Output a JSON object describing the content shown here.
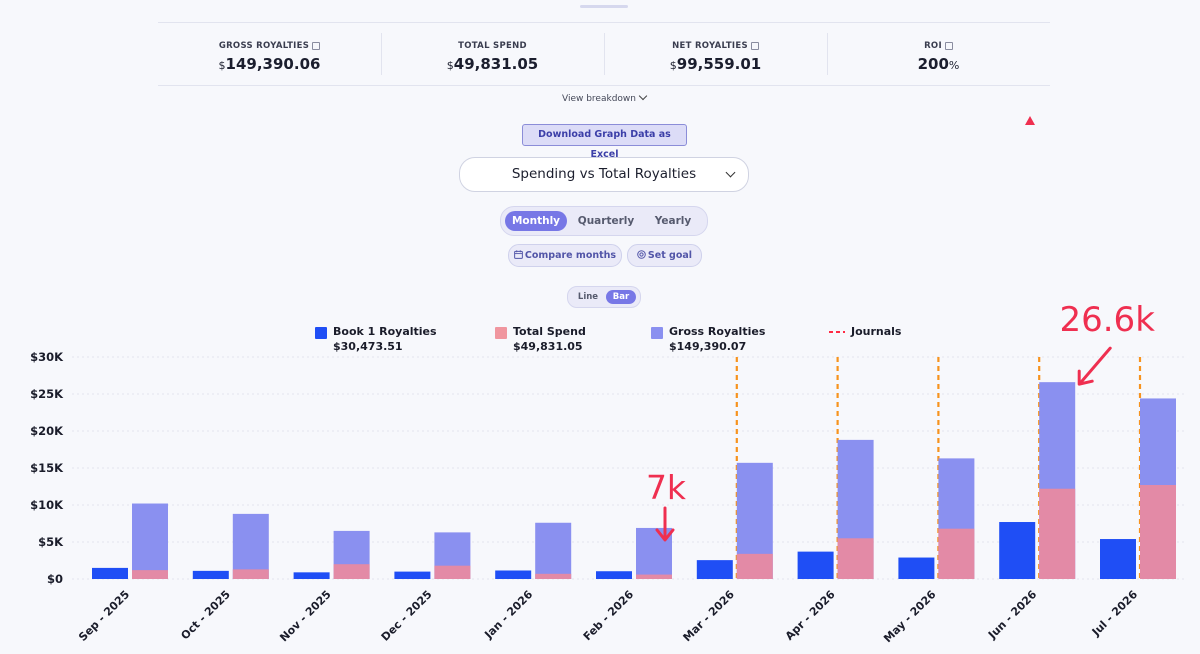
{
  "stats": [
    {
      "label": "GROSS ROYALTIES",
      "info": true,
      "currency": "$",
      "value": "149,390.06",
      "suffix": ""
    },
    {
      "label": "TOTAL SPEND",
      "info": false,
      "currency": "$",
      "value": "49,831.05",
      "suffix": ""
    },
    {
      "label": "NET ROYALTIES",
      "info": true,
      "currency": "$",
      "value": "99,559.01",
      "suffix": ""
    },
    {
      "label": "ROI",
      "info": true,
      "currency": "",
      "value": "200",
      "suffix": "%"
    }
  ],
  "breakdown_label": "View breakdown",
  "download_label": "Download Graph Data as Excel",
  "chart_select": {
    "value": "Spending vs Total Royalties"
  },
  "period_tabs": [
    {
      "label": "Monthly",
      "active": true
    },
    {
      "label": "Quarterly",
      "active": false
    },
    {
      "label": "Yearly",
      "active": false
    }
  ],
  "actions": {
    "compare_label": "Compare months",
    "goal_label": "Set goal"
  },
  "chart_mode": [
    {
      "label": "Line",
      "active": false
    },
    {
      "label": "Bar",
      "active": true
    }
  ],
  "legend": [
    {
      "name": "Book 1 Royalties",
      "total": "$30,473.51",
      "color": "#1f4ef5"
    },
    {
      "name": "Total Spend",
      "total": "$49,831.05",
      "color": "#f0969f"
    },
    {
      "name": "Gross Royalties",
      "total": "$149,390.07",
      "color": "#8a90f0"
    },
    {
      "name": "Journals",
      "total": "",
      "color": "#ff2a44"
    }
  ],
  "annotations": [
    {
      "text": "7k",
      "category": "Feb - 2026"
    },
    {
      "text": "26.6k",
      "category": "Jun - 2026"
    }
  ],
  "chart_data": {
    "type": "bar",
    "categories": [
      "Sep - 2025",
      "Oct - 2025",
      "Nov - 2025",
      "Dec - 2025",
      "Jan - 2026",
      "Feb - 2026",
      "Mar - 2026",
      "Apr - 2026",
      "May - 2026",
      "Jun - 2026",
      "Jul - 2026"
    ],
    "series": [
      {
        "name": "Book 1 Royalties",
        "color": "#1f4ef5",
        "values": [
          1500,
          1100,
          900,
          1000,
          1150,
          1050,
          2550,
          3700,
          2900,
          7700,
          5400
        ]
      },
      {
        "name": "Total Spend",
        "color": "#e38aa6",
        "values": [
          1200,
          1300,
          2000,
          1800,
          700,
          600,
          3400,
          5500,
          6800,
          12200,
          12700
        ]
      },
      {
        "name": "Gross Royalties",
        "color": "#8a90f0",
        "values": [
          10200,
          8800,
          6500,
          6300,
          7600,
          6900,
          15700,
          18800,
          16300,
          26600,
          24400
        ]
      }
    ],
    "journal_markers": [
      "Mar - 2026",
      "Apr - 2026",
      "May - 2026",
      "Jun - 2026",
      "Jul - 2026"
    ],
    "ylim": [
      0,
      30000
    ],
    "yticks": [
      "$0",
      "$5K",
      "$10K",
      "$15K",
      "$20K",
      "$25K",
      "$30K"
    ],
    "grid": true,
    "legend_position": "top"
  }
}
